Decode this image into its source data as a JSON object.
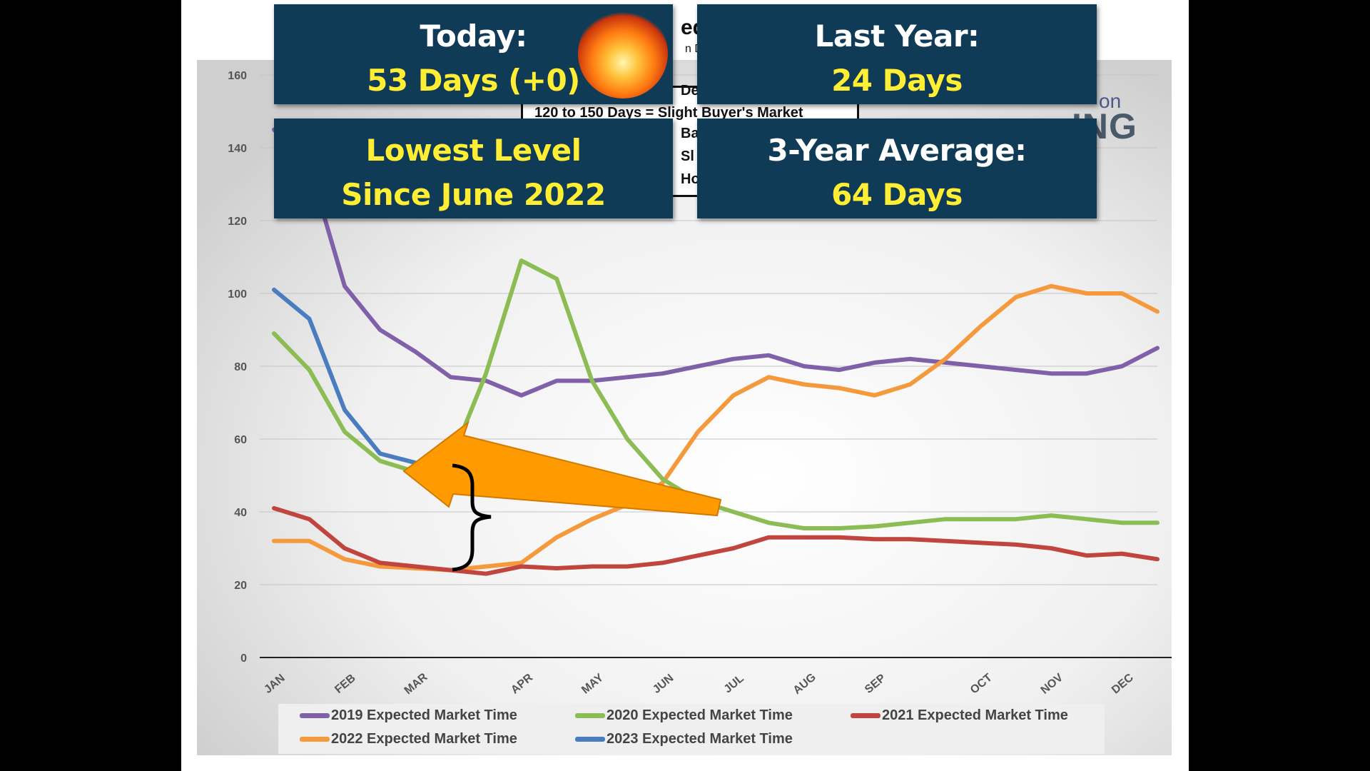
{
  "boxes": {
    "today_label": "Today:",
    "today_value": "53 Days (+0)",
    "last_year_label": "Last Year:",
    "last_year_value": "24 Days",
    "lowest_line1": "Lowest Level",
    "lowest_line2": "Since June 2022",
    "avg_label": "3-Year Average:",
    "avg_value": "64 Days"
  },
  "key_table": {
    "row_visible": "120 to 150 Days  =  Slight Buyer's Market",
    "partial_header": "ed",
    "partial_subheader": "n Da",
    "partial_de": "De",
    "partial_ba": "Ba",
    "partial_sl": "Sl",
    "partial_ho": "Ho"
  },
  "logo_text": "ING",
  "logo_on": "on",
  "colors": {
    "navy": "#0f3b57",
    "yellow": "#ffee33",
    "s2019": "#8060a8",
    "s2020": "#8cbc54",
    "s2021": "#c0453e",
    "s2022": "#f59a3c",
    "s2023": "#4a7dbf",
    "arrow": "#ff9a00"
  },
  "chart_data": {
    "type": "line",
    "title": "",
    "xlabel": "",
    "ylabel": "",
    "ylim": [
      0,
      160
    ],
    "yticks": [
      0,
      20,
      40,
      60,
      80,
      100,
      120,
      140,
      160
    ],
    "month_labels": [
      "JAN",
      "FEB",
      "MAR",
      "APR",
      "MAY",
      "JUN",
      "JUL",
      "AUG",
      "SEP",
      "OCT",
      "NOV",
      "DEC"
    ],
    "month_week_index": [
      0,
      4,
      8,
      14,
      18,
      22,
      26,
      30,
      34,
      40,
      44,
      48
    ],
    "x_weeks_max": 50,
    "series": [
      {
        "name": "2019 Expected Market Time",
        "color": "#8060a8",
        "points": [
          [
            0,
            145
          ],
          [
            2,
            135
          ],
          [
            4,
            102
          ],
          [
            6,
            90
          ],
          [
            8,
            84
          ],
          [
            10,
            77
          ],
          [
            12,
            76
          ],
          [
            14,
            72
          ],
          [
            16,
            76
          ],
          [
            18,
            76
          ],
          [
            20,
            77
          ],
          [
            22,
            78
          ],
          [
            24,
            80
          ],
          [
            26,
            82
          ],
          [
            28,
            83
          ],
          [
            30,
            80
          ],
          [
            32,
            79
          ],
          [
            34,
            81
          ],
          [
            36,
            82
          ],
          [
            38,
            81
          ],
          [
            40,
            80
          ],
          [
            42,
            79
          ],
          [
            44,
            78
          ],
          [
            46,
            78
          ],
          [
            48,
            80
          ],
          [
            50,
            85
          ]
        ]
      },
      {
        "name": "2020 Expected Market Time",
        "color": "#8cbc54",
        "points": [
          [
            0,
            89
          ],
          [
            2,
            79
          ],
          [
            4,
            62
          ],
          [
            6,
            54
          ],
          [
            8,
            51
          ],
          [
            10,
            54
          ],
          [
            12,
            78
          ],
          [
            14,
            109
          ],
          [
            16,
            104
          ],
          [
            18,
            76
          ],
          [
            20,
            60
          ],
          [
            22,
            49
          ],
          [
            24,
            43
          ],
          [
            26,
            40
          ],
          [
            28,
            37
          ],
          [
            30,
            35.5
          ],
          [
            32,
            35.5
          ],
          [
            34,
            36
          ],
          [
            36,
            37
          ],
          [
            38,
            38
          ],
          [
            40,
            38
          ],
          [
            42,
            38
          ],
          [
            44,
            39
          ],
          [
            46,
            38
          ],
          [
            48,
            37
          ],
          [
            50,
            37
          ]
        ]
      },
      {
        "name": "2021 Expected Market Time",
        "color": "#c0453e",
        "points": [
          [
            0,
            41
          ],
          [
            2,
            38
          ],
          [
            4,
            30
          ],
          [
            6,
            26
          ],
          [
            8,
            25
          ],
          [
            10,
            24
          ],
          [
            12,
            23
          ],
          [
            14,
            25
          ],
          [
            16,
            24.5
          ],
          [
            18,
            25
          ],
          [
            20,
            25
          ],
          [
            22,
            26
          ],
          [
            24,
            28
          ],
          [
            26,
            30
          ],
          [
            28,
            33
          ],
          [
            30,
            33
          ],
          [
            32,
            33
          ],
          [
            34,
            32.5
          ],
          [
            36,
            32.5
          ],
          [
            38,
            32
          ],
          [
            40,
            31.5
          ],
          [
            42,
            31
          ],
          [
            44,
            30
          ],
          [
            46,
            28
          ],
          [
            48,
            28.5
          ],
          [
            50,
            27
          ]
        ]
      },
      {
        "name": "2022 Expected Market Time",
        "color": "#f59a3c",
        "points": [
          [
            0,
            32
          ],
          [
            2,
            32
          ],
          [
            4,
            27
          ],
          [
            6,
            25
          ],
          [
            8,
            24.5
          ],
          [
            10,
            24
          ],
          [
            12,
            25
          ],
          [
            14,
            26
          ],
          [
            16,
            33
          ],
          [
            18,
            38
          ],
          [
            20,
            42
          ],
          [
            22,
            48
          ],
          [
            24,
            62
          ],
          [
            26,
            72
          ],
          [
            28,
            77
          ],
          [
            30,
            75
          ],
          [
            32,
            74
          ],
          [
            34,
            72
          ],
          [
            36,
            75
          ],
          [
            38,
            82
          ],
          [
            40,
            91
          ],
          [
            42,
            99
          ],
          [
            44,
            102
          ],
          [
            46,
            100
          ],
          [
            48,
            100
          ],
          [
            50,
            95
          ]
        ]
      },
      {
        "name": "2023 Expected Market Time",
        "color": "#4a7dbf",
        "points": [
          [
            0,
            101
          ],
          [
            2,
            93
          ],
          [
            4,
            68
          ],
          [
            6,
            56
          ],
          [
            8,
            53.5
          ],
          [
            10,
            53
          ]
        ]
      }
    ]
  }
}
